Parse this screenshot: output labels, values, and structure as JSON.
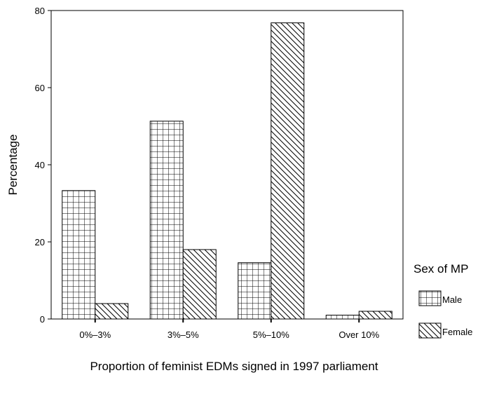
{
  "chart_data": {
    "type": "bar",
    "xlabel": "Proportion of feminist EDMs signed in 1997 parliament",
    "ylabel": "Percentage",
    "ylim": [
      0,
      80
    ],
    "yticks": [
      "0",
      "20",
      "40",
      "60",
      "80"
    ],
    "categories": [
      "0%–3%",
      "3%–5%",
      "5%–10%",
      "Over 10%"
    ],
    "series": [
      {
        "name": "Male",
        "values": [
          33.3,
          51.3,
          14.6,
          1.0
        ],
        "pattern": "grid"
      },
      {
        "name": "Female",
        "values": [
          4.0,
          18.0,
          76.8,
          2.0
        ],
        "pattern": "hatch"
      }
    ],
    "legend": {
      "title": "Sex of MP",
      "position": "right"
    },
    "grid": false
  }
}
